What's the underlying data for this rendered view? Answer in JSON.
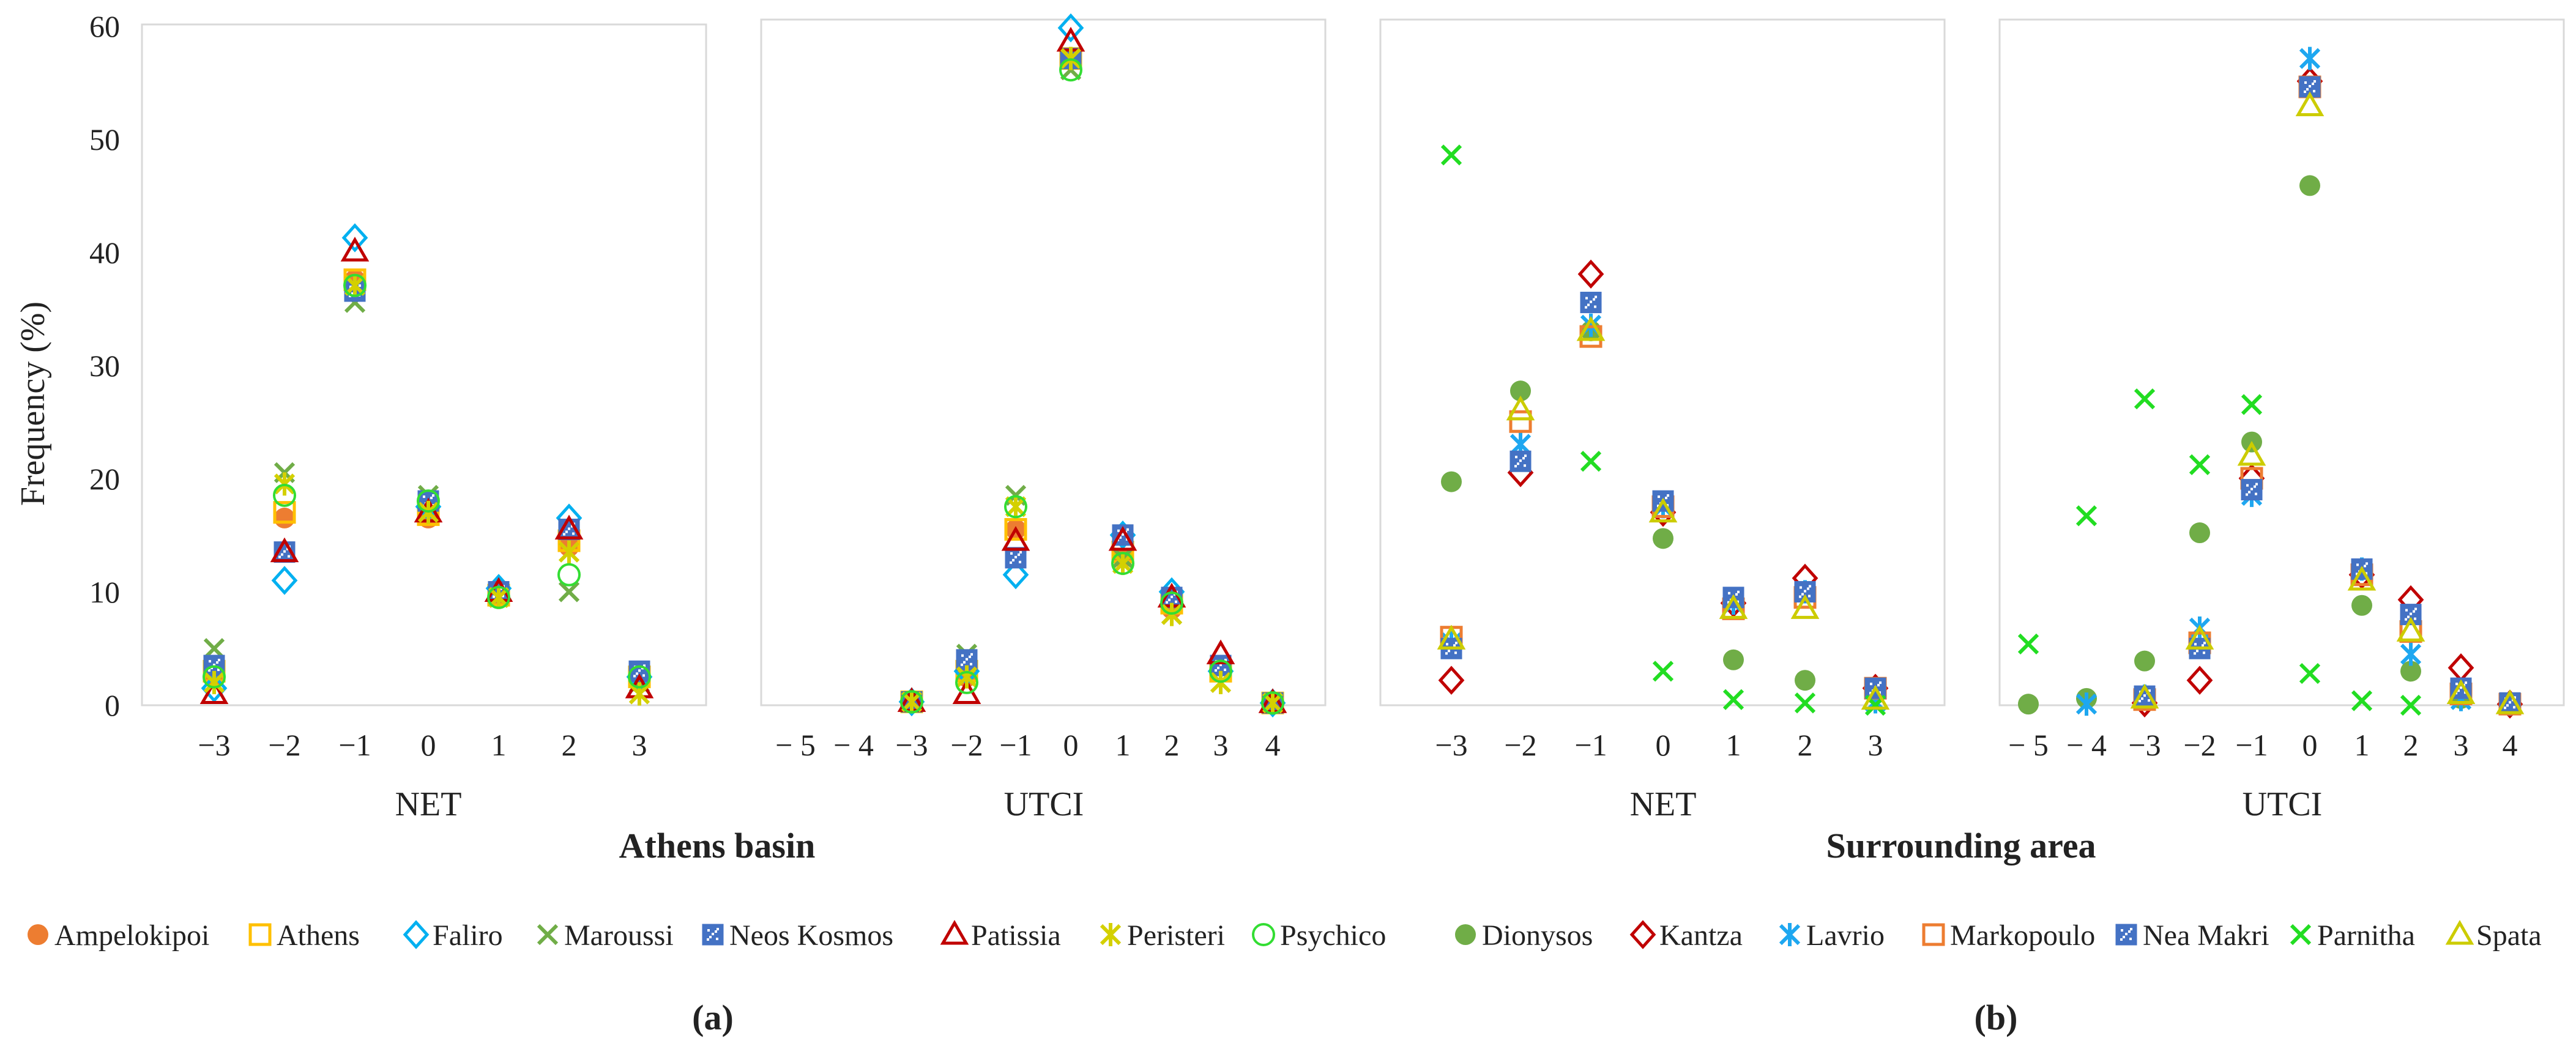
{
  "chart_data": [
    {
      "type": "scatter",
      "ylabel": "Frequency (%)",
      "xlabel": "NET",
      "xticks": [
        "−3",
        "−2",
        "−1",
        "0",
        "1",
        "2",
        "3"
      ],
      "x": [
        -3,
        -2,
        -1,
        0,
        1,
        2,
        3
      ],
      "ylim": [
        0,
        60
      ],
      "yticks": [
        "0",
        "10",
        "20",
        "30",
        "40",
        "50",
        "60"
      ],
      "series": [
        {
          "name": "Ampelokipoi",
          "marker": "circle-filled",
          "color": "#ED7D31",
          "values": [
            2.5,
            16.5,
            37.5,
            16.5,
            9.5,
            14.0,
            2.0
          ]
        },
        {
          "name": "Athens",
          "marker": "square",
          "color": "#FFC000",
          "values": [
            3.0,
            17.0,
            37.5,
            16.8,
            9.7,
            14.5,
            2.5
          ]
        },
        {
          "name": "Faliro",
          "marker": "diamond",
          "color": "#00B0F0",
          "values": [
            1.5,
            11.0,
            41.2,
            17.5,
            10.3,
            16.5,
            2.5
          ]
        },
        {
          "name": "Maroussi",
          "marker": "x",
          "color": "#70AD47",
          "values": [
            5.0,
            20.5,
            35.5,
            18.5,
            9.5,
            10.0,
            2.0
          ]
        },
        {
          "name": "Neos Kosmos",
          "marker": "square-hatched",
          "color": "#4472C4",
          "values": [
            3.5,
            13.5,
            36.5,
            18.0,
            10.0,
            15.5,
            3.0
          ]
        },
        {
          "name": "Patissia",
          "marker": "triangle",
          "color": "#C00000",
          "values": [
            1.0,
            13.5,
            40.0,
            17.0,
            10.0,
            15.5,
            1.5
          ]
        },
        {
          "name": "Peristeri",
          "marker": "asterisk",
          "color": "#D4D000",
          "values": [
            2.0,
            19.5,
            37.0,
            17.0,
            9.5,
            13.5,
            1.0
          ]
        },
        {
          "name": "Psychico",
          "marker": "circle",
          "color": "#33DD33",
          "values": [
            2.5,
            18.5,
            37.0,
            18.0,
            9.5,
            11.5,
            2.5
          ]
        }
      ]
    },
    {
      "type": "scatter",
      "xlabel": "UTCI",
      "xticks": [
        "− 5",
        "− 4",
        "−3",
        "−2",
        "−1",
        "0",
        "1",
        "2",
        "3",
        "4"
      ],
      "x": [
        -5,
        -4,
        -3,
        -2,
        -1,
        0,
        1,
        2,
        3,
        4
      ],
      "ylim": [
        0,
        60
      ],
      "series": [
        {
          "name": "Ampelokipoi",
          "values": [
            null,
            null,
            0.3,
            2.5,
            15.5,
            57.0,
            13.0,
            8.5,
            3.5,
            0.2
          ]
        },
        {
          "name": "Athens",
          "values": [
            null,
            null,
            0.3,
            3.0,
            15.5,
            57.0,
            13.5,
            9.0,
            3.0,
            0.2
          ]
        },
        {
          "name": "Faliro",
          "values": [
            null,
            null,
            0.3,
            3.0,
            11.5,
            59.7,
            15.0,
            10.0,
            3.0,
            0.2
          ]
        },
        {
          "name": "Maroussi",
          "values": [
            null,
            null,
            0.3,
            4.5,
            18.5,
            56.0,
            13.0,
            8.0,
            3.5,
            0.2
          ]
        },
        {
          "name": "Neos Kosmos",
          "values": [
            null,
            null,
            0.3,
            4.0,
            13.0,
            57.0,
            15.0,
            9.5,
            3.5,
            0.2
          ]
        },
        {
          "name": "Patissia",
          "values": [
            null,
            null,
            0.3,
            1.0,
            14.5,
            58.5,
            14.5,
            9.5,
            4.5,
            0.2
          ]
        },
        {
          "name": "Peristeri",
          "values": [
            null,
            null,
            0.3,
            2.5,
            17.5,
            57.0,
            12.5,
            8.0,
            2.0,
            0.2
          ]
        },
        {
          "name": "Psychico",
          "values": [
            null,
            null,
            0.3,
            2.0,
            17.5,
            56.0,
            12.5,
            9.0,
            3.0,
            0.2
          ]
        }
      ]
    },
    {
      "type": "scatter",
      "xlabel": "NET",
      "xticks": [
        "−3",
        "−2",
        "−1",
        "0",
        "1",
        "2",
        "3"
      ],
      "x": [
        -3,
        -2,
        -1,
        0,
        1,
        2,
        3
      ],
      "ylim": [
        0,
        60
      ],
      "series": [
        {
          "name": "Dionysos",
          "marker": "circle-filled",
          "color": "#70AD47",
          "values": [
            19.7,
            27.7,
            33.0,
            14.7,
            4.0,
            2.2,
            1.0
          ]
        },
        {
          "name": "Kantza",
          "marker": "diamond",
          "color": "#C00000",
          "values": [
            2.2,
            20.5,
            38.0,
            17.0,
            9.0,
            11.2,
            1.5
          ]
        },
        {
          "name": "Lavrio",
          "marker": "asterisk",
          "color": "#1EA7F0",
          "values": [
            5.5,
            23.0,
            33.5,
            17.5,
            9.0,
            10.0,
            0.3
          ]
        },
        {
          "name": "Markopoulo",
          "marker": "square",
          "color": "#ED7D31",
          "values": [
            6.0,
            25.0,
            32.5,
            17.5,
            8.5,
            9.5,
            1.5
          ]
        },
        {
          "name": "Nea Makri",
          "marker": "square-hatched",
          "color": "#4472C4",
          "values": [
            5.0,
            21.5,
            35.5,
            18.0,
            9.5,
            10.0,
            1.5
          ]
        },
        {
          "name": "Parnitha",
          "marker": "x",
          "color": "#22DD22",
          "values": [
            48.5,
            null,
            21.5,
            3.0,
            0.5,
            0.2,
            0.0
          ]
        },
        {
          "name": "Spata",
          "marker": "triangle",
          "color": "#CCCC00",
          "values": [
            5.8,
            26.0,
            33.0,
            17.0,
            8.5,
            8.5,
            0.5
          ]
        }
      ]
    },
    {
      "type": "scatter",
      "xlabel": "UTCI",
      "xticks": [
        "− 5",
        "− 4",
        "−3",
        "−2",
        "−1",
        "0",
        "1",
        "2",
        "3",
        "4"
      ],
      "x": [
        -5,
        -4,
        -3,
        -2,
        -1,
        0,
        1,
        2,
        3,
        4
      ],
      "ylim": [
        0,
        60
      ],
      "series": [
        {
          "name": "Dionysos",
          "values": [
            0.1,
            0.6,
            3.9,
            15.2,
            23.2,
            45.8,
            8.8,
            3.0,
            0.6,
            0.1
          ]
        },
        {
          "name": "Kantza",
          "values": [
            null,
            null,
            0.2,
            2.2,
            20.0,
            55.0,
            11.5,
            9.3,
            3.3,
            0.1
          ]
        },
        {
          "name": "Lavrio",
          "values": [
            null,
            0.1,
            0.8,
            6.8,
            18.5,
            57.0,
            12.0,
            4.5,
            0.5,
            0.1
          ]
        },
        {
          "name": "Markopoulo",
          "values": [
            null,
            null,
            0.5,
            5.5,
            20.0,
            54.5,
            11.5,
            6.5,
            1.0,
            0.1
          ]
        },
        {
          "name": "Nea Makri",
          "values": [
            null,
            null,
            0.8,
            5.0,
            19.0,
            54.5,
            12.0,
            8.0,
            1.5,
            0.2
          ]
        },
        {
          "name": "Parnitha",
          "values": [
            5.4,
            16.7,
            27.0,
            21.2,
            26.5,
            2.8,
            0.4,
            0.0,
            null,
            null
          ]
        },
        {
          "name": "Spata",
          "values": [
            null,
            null,
            0.6,
            5.8,
            22.0,
            52.8,
            11.0,
            6.5,
            1.0,
            0.1
          ]
        }
      ]
    }
  ],
  "group_labels": {
    "a": "Athens basin",
    "b": "Surrounding area"
  },
  "panel_labels": {
    "a": "(a)",
    "b": "(b)"
  }
}
